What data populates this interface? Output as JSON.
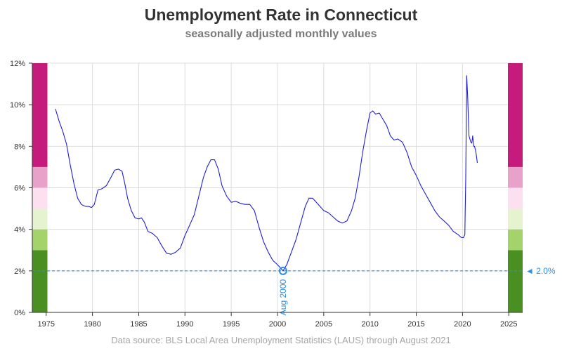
{
  "chart_data": {
    "type": "line",
    "title": "Unemployment Rate in Connecticut",
    "subtitle": "seasonally adjusted monthly values",
    "source": "Data source: BLS Local Area Unemployment Statistics (LAUS) through August 2021",
    "xlabel": "",
    "ylabel": "",
    "xlim": [
      1973.5,
      2026.5
    ],
    "ylim": [
      0,
      12
    ],
    "grid": true,
    "x_ticks": [
      "1975",
      "1980",
      "1985",
      "1990",
      "1995",
      "2000",
      "2005",
      "2010",
      "2015",
      "2020",
      "2025"
    ],
    "y_ticks": [
      "0%",
      "2%",
      "4%",
      "6%",
      "8%",
      "10%",
      "12%"
    ],
    "line_color": "#1f1fd6",
    "reference_line": {
      "value": 2.0,
      "label": "◄ 2.0%",
      "color": "#2b90e0"
    },
    "annotation": {
      "x": 2000.6,
      "y": 2.0,
      "label": "Aug 2000",
      "color": "#2b90e0"
    },
    "bands": [
      {
        "from": 0,
        "to": 3,
        "color": "#4a8f22"
      },
      {
        "from": 3,
        "to": 4,
        "color": "#a3d36a"
      },
      {
        "from": 4,
        "to": 5,
        "color": "#e6f3d0"
      },
      {
        "from": 5,
        "to": 6,
        "color": "#fde0ef"
      },
      {
        "from": 6,
        "to": 7,
        "color": "#e8a1c9"
      },
      {
        "from": 7,
        "to": 12,
        "color": "#c51b7d"
      }
    ],
    "series": [
      {
        "x": [
          1976.0,
          1976.4,
          1976.8,
          1977.2,
          1977.6,
          1978.0,
          1978.4,
          1978.8,
          1979.0,
          1979.3,
          1979.6,
          1979.9,
          1980.2,
          1980.6,
          1981.0,
          1981.5,
          1982.0,
          1982.4,
          1982.8,
          1983.2,
          1983.5,
          1983.8,
          1984.2,
          1984.6,
          1985.0,
          1985.3,
          1985.6,
          1986.0,
          1986.5,
          1987.0,
          1987.5,
          1988.0,
          1988.5,
          1989.0,
          1989.5,
          1990.0,
          1990.5,
          1991.0,
          1991.5,
          1992.0,
          1992.4,
          1992.8,
          1993.2,
          1993.6,
          1994.0,
          1994.5,
          1995.0,
          1995.5,
          1996.0,
          1996.5,
          1997.0,
          1997.5,
          1998.0,
          1998.5,
          1999.0,
          1999.5,
          2000.0,
          2000.3,
          2000.6,
          2001.0,
          2001.5,
          2002.0,
          2002.5,
          2003.0,
          2003.4,
          2003.8,
          2004.2,
          2004.6,
          2005.0,
          2005.5,
          2006.0,
          2006.5,
          2007.0,
          2007.5,
          2008.0,
          2008.4,
          2008.8,
          2009.2,
          2009.6,
          2010.0,
          2010.3,
          2010.6,
          2011.0,
          2011.4,
          2011.8,
          2012.2,
          2012.6,
          2013.0,
          2013.5,
          2014.0,
          2014.5,
          2015.0,
          2015.5,
          2016.0,
          2016.5,
          2017.0,
          2017.5,
          2018.0,
          2018.5,
          2019.0,
          2019.5,
          2019.9,
          2020.1,
          2020.25,
          2020.35,
          2020.45,
          2020.55,
          2020.7,
          2020.9,
          2021.0,
          2021.1,
          2021.2,
          2021.3,
          2021.45,
          2021.6
        ],
        "values": [
          9.8,
          9.2,
          8.7,
          8.1,
          7.1,
          6.2,
          5.5,
          5.2,
          5.15,
          5.1,
          5.1,
          5.05,
          5.2,
          5.9,
          5.95,
          6.1,
          6.5,
          6.85,
          6.9,
          6.8,
          6.2,
          5.5,
          4.9,
          4.55,
          4.5,
          4.55,
          4.35,
          3.9,
          3.8,
          3.6,
          3.2,
          2.85,
          2.8,
          2.9,
          3.1,
          3.7,
          4.2,
          4.7,
          5.6,
          6.5,
          7.0,
          7.35,
          7.35,
          6.9,
          6.1,
          5.6,
          5.3,
          5.35,
          5.25,
          5.2,
          5.2,
          4.9,
          4.1,
          3.4,
          2.9,
          2.5,
          2.3,
          2.15,
          2.0,
          2.3,
          2.9,
          3.5,
          4.3,
          5.1,
          5.5,
          5.5,
          5.3,
          5.1,
          4.9,
          4.8,
          4.6,
          4.4,
          4.3,
          4.4,
          4.9,
          5.5,
          6.5,
          7.7,
          8.7,
          9.6,
          9.7,
          9.55,
          9.6,
          9.3,
          9.0,
          8.5,
          8.3,
          8.35,
          8.2,
          7.7,
          7.0,
          6.6,
          6.1,
          5.7,
          5.3,
          4.9,
          4.6,
          4.4,
          4.2,
          3.9,
          3.75,
          3.6,
          3.6,
          3.75,
          6.5,
          11.4,
          10.5,
          8.5,
          8.2,
          8.15,
          8.5,
          8.0,
          8.0,
          7.7,
          7.2
        ]
      }
    ]
  }
}
